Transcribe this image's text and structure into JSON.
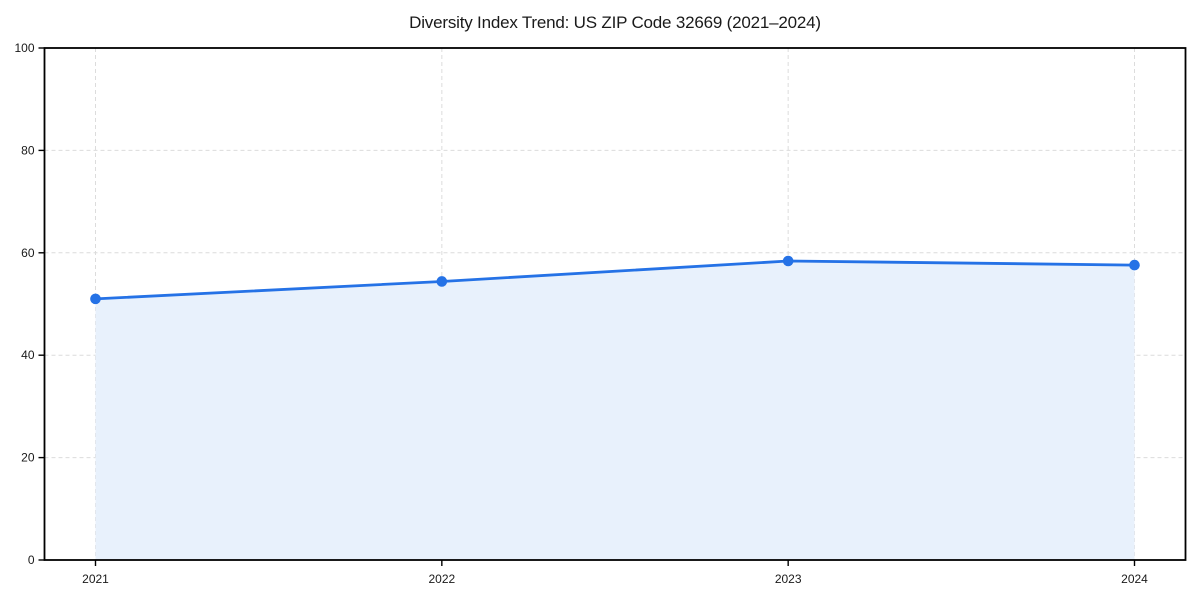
{
  "page": {
    "background": "#ffffff"
  },
  "chart_data": {
    "type": "area",
    "title": "Diversity Index Trend: US ZIP Code 32669 (2021–2024)",
    "x": [
      2021,
      2022,
      2023,
      2024
    ],
    "xticklabels": [
      "2021",
      "2022",
      "2023",
      "2024"
    ],
    "series": [
      {
        "name": "Diversity Index",
        "values": [
          51.0,
          54.4,
          58.4,
          57.6
        ]
      }
    ],
    "xlabel": "",
    "ylabel": "",
    "ylim": [
      0,
      100
    ],
    "yticks": [
      0,
      20,
      40,
      60,
      80,
      100
    ],
    "grid": "dashed",
    "legend": "none",
    "marker": "circle",
    "colors": {
      "line": "#2572e6",
      "marker": "#2572e6",
      "fill": "#e8f1fc",
      "grid": "#dcdcdc",
      "axis": "#000000",
      "tick_text": "#1a1a1a",
      "title_text": "#1a1a1a"
    }
  }
}
